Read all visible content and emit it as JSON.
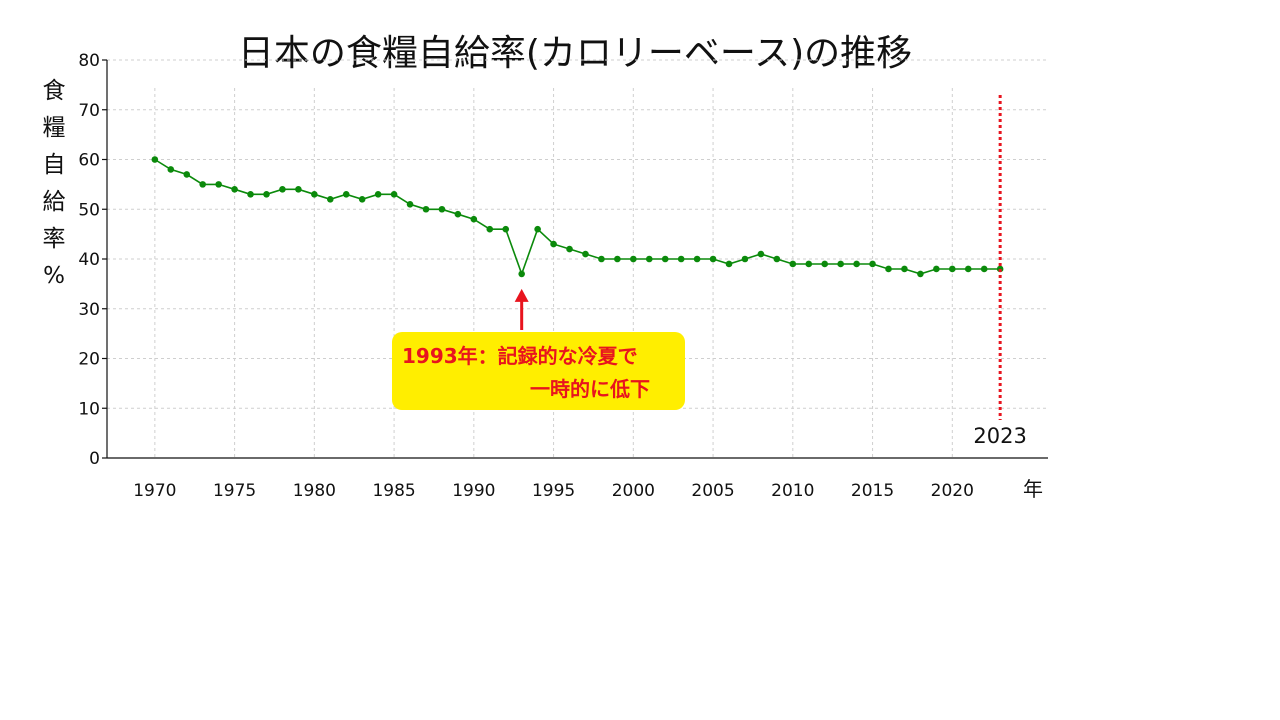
{
  "chart_data": {
    "type": "line",
    "title": "日本の食糧自給率(カロリーベース)の推移",
    "ylabel": "食糧自給率%",
    "xlabel": "年",
    "ylim": [
      0,
      80
    ],
    "xlim": [
      1967,
      2026
    ],
    "y_ticks": [
      "0",
      "10",
      "20",
      "30",
      "40",
      "50",
      "60",
      "70",
      "80"
    ],
    "x_ticks": [
      "1970",
      "1975",
      "1980",
      "1985",
      "1990",
      "1995",
      "2000",
      "2005",
      "2010",
      "2015",
      "2020"
    ],
    "grid": true,
    "series": [
      {
        "color": "#0b8a0b",
        "x": [
          1970,
          1971,
          1972,
          1973,
          1974,
          1975,
          1976,
          1977,
          1978,
          1979,
          1980,
          1981,
          1982,
          1983,
          1984,
          1985,
          1986,
          1987,
          1988,
          1989,
          1990,
          1991,
          1992,
          1993,
          1994,
          1995,
          1996,
          1997,
          1998,
          1999,
          2000,
          2001,
          2002,
          2003,
          2004,
          2005,
          2006,
          2007,
          2008,
          2009,
          2010,
          2011,
          2012,
          2013,
          2014,
          2015,
          2016,
          2017,
          2018,
          2019,
          2020,
          2021,
          2022,
          2023
        ],
        "values": [
          60,
          58,
          57,
          55,
          55,
          54,
          53,
          53,
          54,
          54,
          53,
          52,
          53,
          52,
          53,
          53,
          51,
          50,
          50,
          49,
          48,
          46,
          46,
          37,
          46,
          43,
          42,
          41,
          40,
          40,
          40,
          40,
          40,
          40,
          40,
          40,
          39,
          40,
          41,
          40,
          39,
          39,
          39,
          39,
          39,
          39,
          38,
          38,
          37,
          38,
          38,
          38,
          38,
          38
        ]
      }
    ],
    "reference_line": {
      "x": 2023,
      "label": "2023",
      "color": "#e8141e"
    },
    "annotation": {
      "x": 1993,
      "y": 37,
      "lines": [
        "1993年：記録的な冷夏で",
        "一時的に低下"
      ],
      "box_color": "#ffee00",
      "text_color": "#e8141e",
      "arrow_color": "#e8141e"
    }
  }
}
